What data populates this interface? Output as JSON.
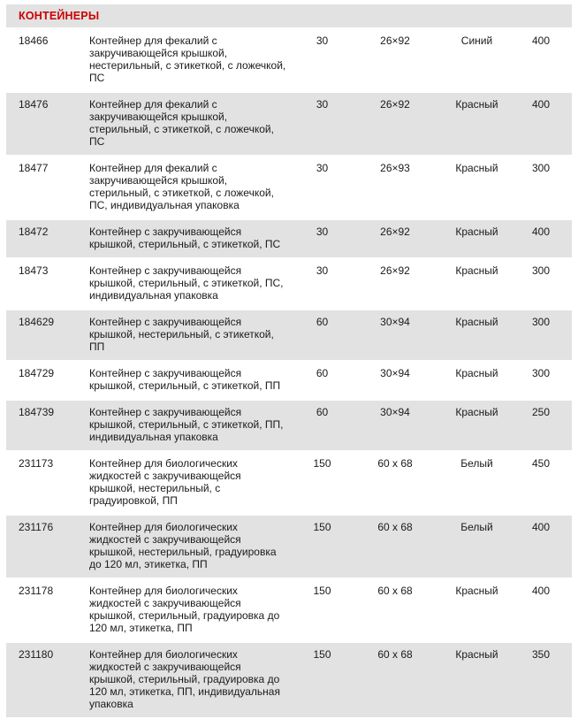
{
  "table": {
    "title": "КОНТЕЙНЕРЫ",
    "accent_color": "#cc0000",
    "row_alt_color": "#e2e2e2",
    "rows": [
      {
        "article": "18466",
        "description": "Контейнер для фекалий с закручивающейся крышкой, нестерильный, с этикеткой, с ложечкой, ПС",
        "volume": "30",
        "size": "26×92",
        "color": "Синий",
        "qty": "400"
      },
      {
        "article": "18476",
        "description": "Контейнер для фекалий с закручивающейся крышкой, стерильный, с этикеткой, с ложечкой, ПС",
        "volume": "30",
        "size": "26×92",
        "color": "Красный",
        "qty": "400"
      },
      {
        "article": "18477",
        "description": "Контейнер для фекалий с закручивающейся крышкой, стерильный, с этикеткой, с ложечкой, ПС, индивидуальная упаковка",
        "volume": "30",
        "size": "26×93",
        "color": "Красный",
        "qty": "300"
      },
      {
        "article": "18472",
        "description": "Контейнер с закручивающейся крышкой, стерильный, с этикеткой, ПС",
        "volume": "30",
        "size": "26×92",
        "color": "Красный",
        "qty": "400"
      },
      {
        "article": "18473",
        "description": "Контейнер с закручивающейся крышкой, стерильный, с этикеткой, ПС, индивидуальная упаковка",
        "volume": "30",
        "size": "26×92",
        "color": "Красный",
        "qty": "300"
      },
      {
        "article": "184629",
        "description": "Контейнер с закручивающейся крышкой, нестерильный, с этикеткой, ПП",
        "volume": "60",
        "size": "30×94",
        "color": "Красный",
        "qty": "300"
      },
      {
        "article": "184729",
        "description": "Контейнер с закручивающейся крышкой, стерильный, с этикеткой, ПП",
        "volume": "60",
        "size": "30×94",
        "color": "Красный",
        "qty": "300"
      },
      {
        "article": "184739",
        "description": "Контейнер с закручивающейся крышкой, стерильный, с этикеткой, ПП, индивидуальная упаковка",
        "volume": "60",
        "size": "30×94",
        "color": "Красный",
        "qty": "250"
      },
      {
        "article": "231173",
        "description": "Контейнер для биологических жидкостей с закручивающейся крышкой, нестерильный, с градуировкой, ПП",
        "volume": "150",
        "size": "60 x 68",
        "color": "Белый",
        "qty": "450"
      },
      {
        "article": "231176",
        "description": "Контейнер для биологических жидкостей с закручивающейся крышкой, нестерильный, градуировка до 120 мл, этикетка, ПП",
        "volume": "150",
        "size": "60 x 68",
        "color": "Белый",
        "qty": "400"
      },
      {
        "article": "231178",
        "description": "Контейнер для биологических жидкостей с закручивающейся крышкой, стерильный, градуировка до 120 мл, этикетка, ПП",
        "volume": "150",
        "size": "60 x 68",
        "color": "Красный",
        "qty": "400"
      },
      {
        "article": "231180",
        "description": "Контейнер для биологических жидкостей с закручивающейся крышкой, стерильный, градуировка до 120 мл, этикетка, ПП, индивидуальная упаковка",
        "volume": "150",
        "size": "60 x 68",
        "color": "Красный",
        "qty": "350"
      }
    ]
  }
}
